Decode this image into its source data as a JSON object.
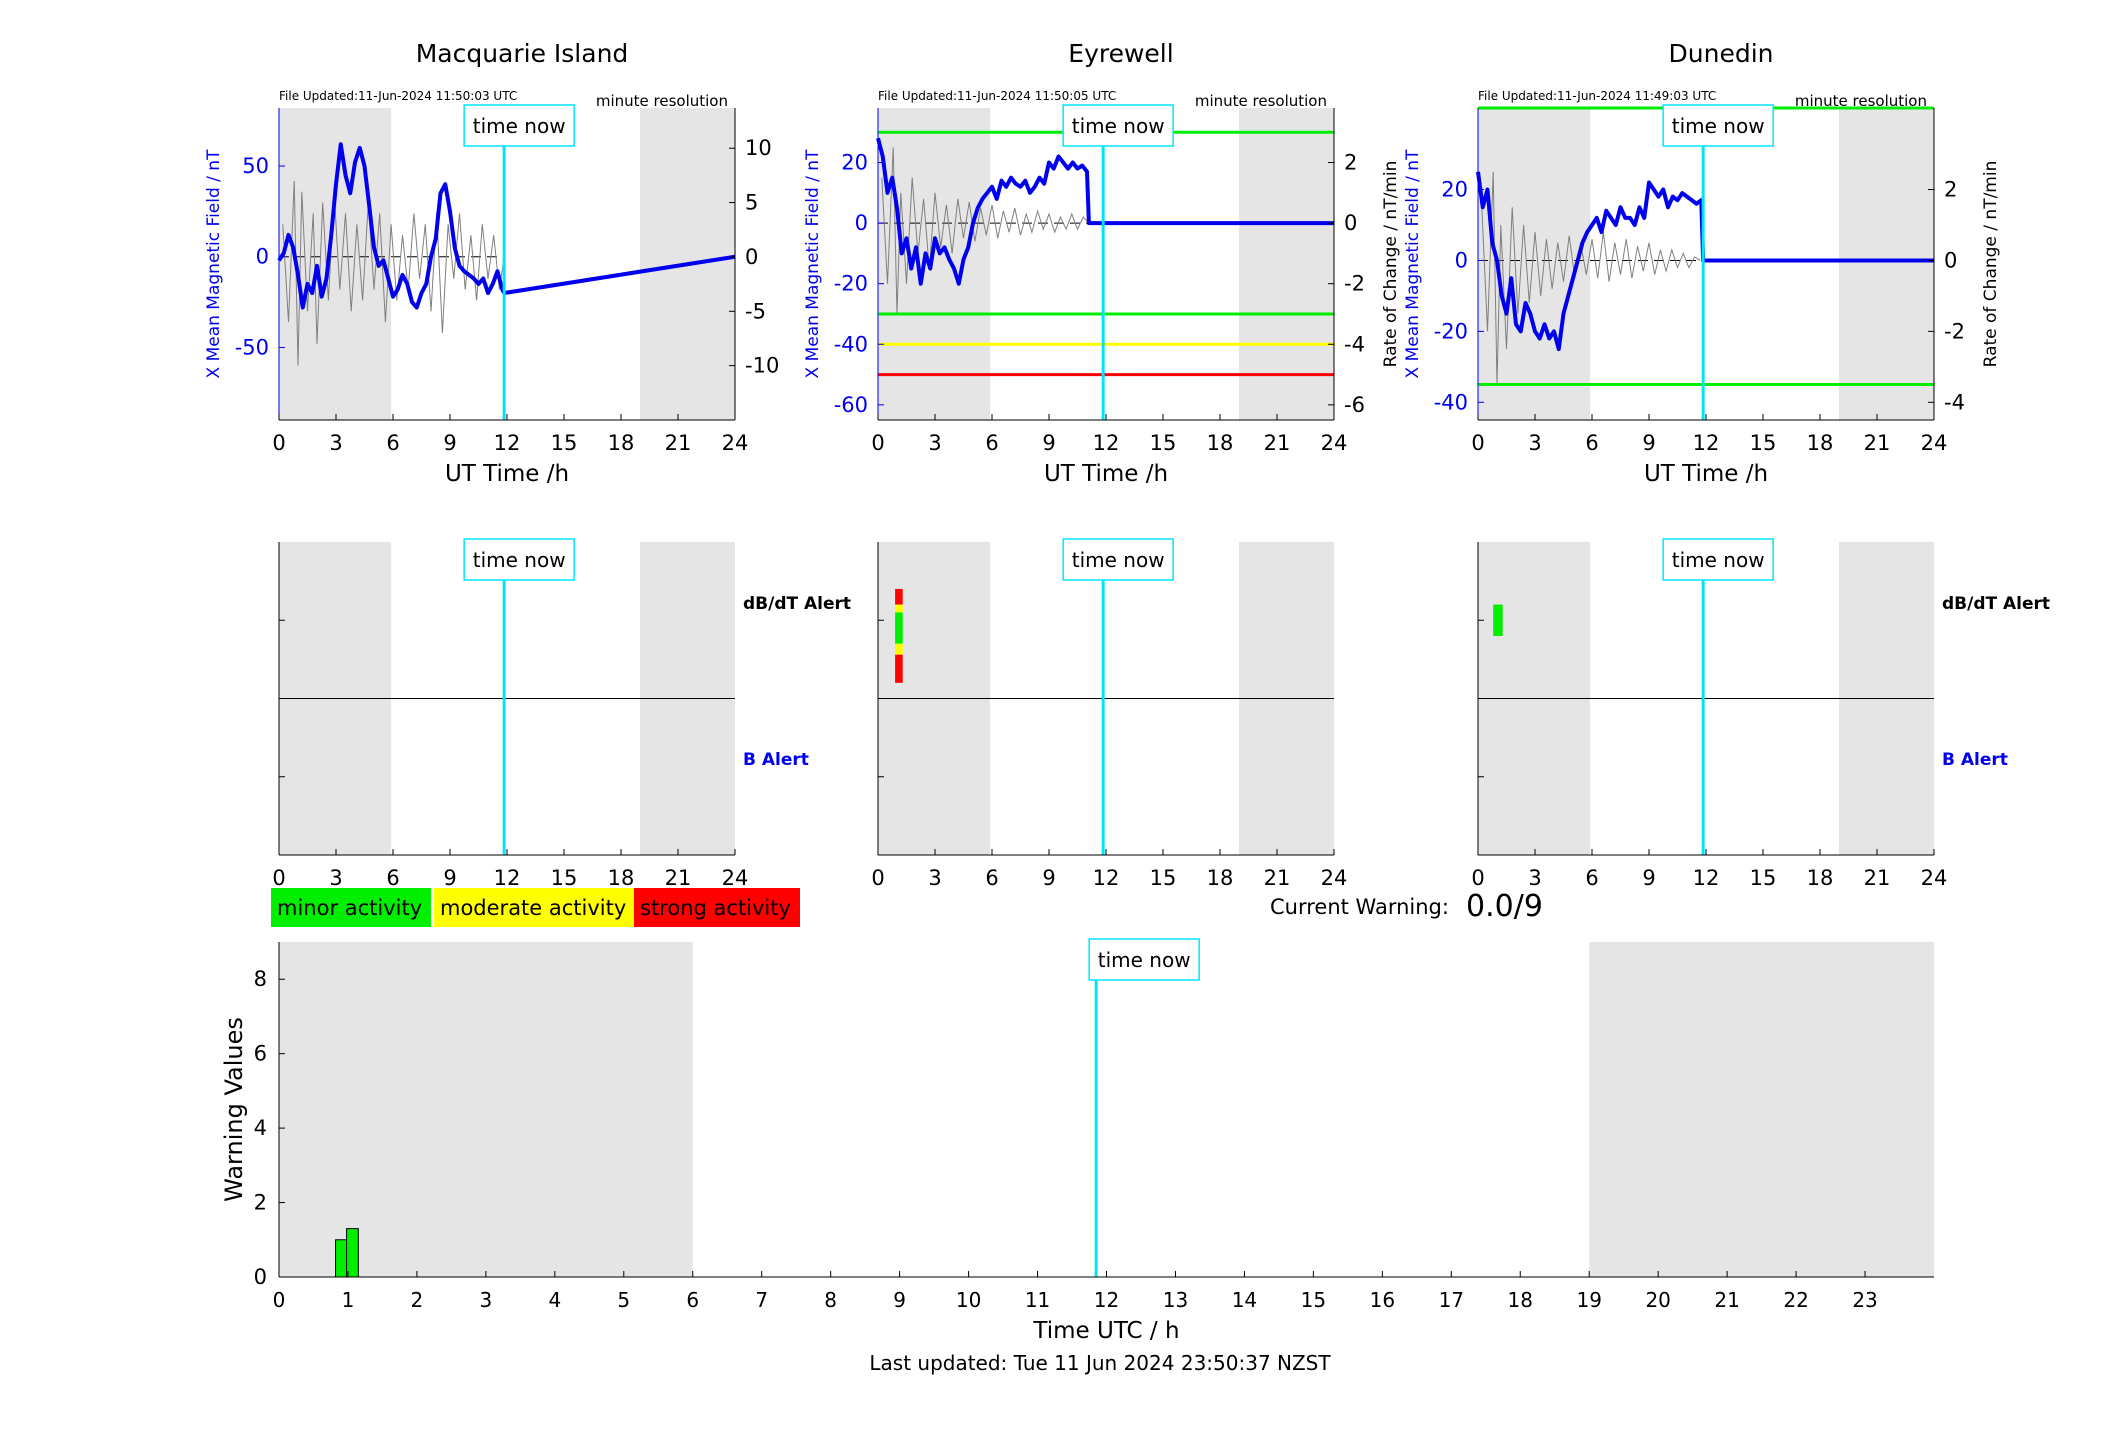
{
  "page": {
    "footer": "Last updated: Tue 11 Jun 2024 23:50:37 NZST",
    "current_warning_label": "Current Warning:",
    "current_warning_value": "0.0/9",
    "time_now_label": "time now",
    "resolution_label": "minute resolution",
    "dbdt_alert_label": "dB/dT Alert",
    "b_alert_label": "B Alert",
    "colors": {
      "field": "#0000ee",
      "rate": "#808080",
      "time_now": "#00e5ff",
      "shade": "#e5e5e5",
      "minor": "#00ee00",
      "moderate": "#ffff00",
      "strong": "#ff0000"
    }
  },
  "legend": [
    {
      "label": "minor activity",
      "color": "#00ee00"
    },
    {
      "label": "moderate activity",
      "color": "#ffff00"
    },
    {
      "label": "strong activity",
      "color": "#ff0000"
    }
  ],
  "chart_data": [
    {
      "type": "line",
      "station": "Macquarie Island",
      "title": "Macquarie Island",
      "file_updated": "File Updated:11-Jun-2024 11:50:03 UTC",
      "xlabel": "UT Time /h",
      "ylabel_left": "X Mean Magnetic Field / nT",
      "ylabel_right": "",
      "xlim": [
        0,
        24
      ],
      "xticks": [
        0,
        3,
        6,
        9,
        12,
        15,
        18,
        21,
        24
      ],
      "ylim": [
        -90,
        82
      ],
      "yticks": [
        -50,
        0,
        50
      ],
      "ylim_right": [
        -15,
        13.7
      ],
      "yticks_right": [
        -10,
        -5,
        0,
        5,
        10
      ],
      "shaded": [
        [
          0,
          5.9
        ],
        [
          19,
          24
        ]
      ],
      "time_now": 11.85,
      "thresholds": [],
      "field": {
        "x": [
          0,
          0.25,
          0.5,
          0.75,
          1,
          1.25,
          1.5,
          1.75,
          2,
          2.25,
          2.5,
          2.75,
          3,
          3.25,
          3.5,
          3.75,
          4,
          4.25,
          4.5,
          4.75,
          5,
          5.25,
          5.5,
          5.75,
          6,
          6.25,
          6.5,
          6.75,
          7,
          7.25,
          7.5,
          7.75,
          8,
          8.25,
          8.5,
          8.75,
          9,
          9.25,
          9.5,
          9.75,
          10,
          10.25,
          10.5,
          10.75,
          11,
          11.25,
          11.5,
          11.75,
          11.85,
          24
        ],
        "y": [
          -2,
          2,
          12,
          5,
          -10,
          -28,
          -15,
          -20,
          -5,
          -22,
          -12,
          12,
          40,
          62,
          45,
          35,
          52,
          60,
          50,
          28,
          5,
          -5,
          -2,
          -12,
          -22,
          -18,
          -10,
          -15,
          -25,
          -28,
          -20,
          -15,
          0,
          10,
          35,
          40,
          25,
          5,
          -5,
          -8,
          -10,
          -12,
          -15,
          -12,
          -20,
          -15,
          -8,
          -18,
          -20,
          0
        ]
      },
      "rate": {
        "x": [
          0.2,
          0.5,
          0.8,
          1.0,
          1.2,
          1.5,
          1.8,
          2.0,
          2.3,
          2.6,
          2.9,
          3.2,
          3.5,
          3.8,
          4.1,
          4.4,
          4.7,
          5.0,
          5.3,
          5.6,
          5.9,
          6.2,
          6.5,
          6.8,
          7.1,
          7.4,
          7.7,
          8.0,
          8.3,
          8.6,
          8.9,
          9.2,
          9.5,
          9.8,
          10.1,
          10.4,
          10.7,
          11.0,
          11.3,
          11.6,
          11.85
        ],
        "y": [
          3,
          -6,
          7,
          -10,
          6,
          -5,
          4,
          -8,
          5,
          -4,
          6,
          -3,
          4,
          -5,
          3,
          -4,
          5,
          -3,
          4,
          -6,
          3,
          -4,
          2,
          -3,
          4,
          -2,
          3,
          -5,
          4,
          -7,
          3,
          -2,
          4,
          -3,
          2,
          -4,
          3,
          -2,
          2,
          -3,
          0
        ]
      }
    },
    {
      "type": "line",
      "station": "Eyrewell",
      "title": "Eyrewell",
      "file_updated": "File Updated:11-Jun-2024 11:50:05 UTC",
      "xlabel": "UT Time /h",
      "ylabel_left": "X Mean Magnetic Field / nT",
      "ylabel_right": "Rate of Change / nT/min",
      "xlim": [
        0,
        24
      ],
      "xticks": [
        0,
        3,
        6,
        9,
        12,
        15,
        18,
        21,
        24
      ],
      "ylim": [
        -65,
        38
      ],
      "yticks": [
        -60,
        -40,
        -20,
        0,
        20
      ],
      "ylim_right": [
        -6.5,
        3.8
      ],
      "yticks_right": [
        -6,
        -4,
        -2,
        0,
        2
      ],
      "shaded": [
        [
          0,
          5.9
        ],
        [
          19,
          24
        ]
      ],
      "time_now": 11.85,
      "thresholds": [
        {
          "y": 30,
          "color": "#00ee00"
        },
        {
          "y": -30,
          "color": "#00ee00"
        },
        {
          "y": -40,
          "color": "#ffff00"
        },
        {
          "y": -50,
          "color": "#ff0000"
        }
      ],
      "field": {
        "x": [
          0,
          0.25,
          0.5,
          0.75,
          1,
          1.25,
          1.5,
          1.75,
          2,
          2.25,
          2.5,
          2.75,
          3,
          3.25,
          3.5,
          3.75,
          4,
          4.25,
          4.5,
          4.75,
          5,
          5.25,
          5.5,
          5.75,
          6,
          6.25,
          6.5,
          6.75,
          7,
          7.25,
          7.5,
          7.75,
          8,
          8.25,
          8.5,
          8.75,
          9,
          9.25,
          9.5,
          9.75,
          10,
          10.25,
          10.5,
          10.75,
          11,
          11.1,
          11.85,
          24
        ],
        "y": [
          28,
          22,
          10,
          15,
          5,
          -10,
          -5,
          -15,
          -8,
          -20,
          -10,
          -15,
          -5,
          -10,
          -8,
          -12,
          -15,
          -20,
          -12,
          -8,
          0,
          5,
          8,
          10,
          12,
          8,
          14,
          12,
          15,
          13,
          12,
          14,
          10,
          12,
          15,
          13,
          20,
          18,
          22,
          20,
          18,
          20,
          18,
          19,
          17,
          0,
          0,
          0
        ]
      },
      "rate": {
        "x": [
          0.2,
          0.5,
          0.8,
          1.0,
          1.2,
          1.5,
          1.8,
          2.1,
          2.4,
          2.7,
          3.0,
          3.3,
          3.6,
          3.9,
          4.2,
          4.5,
          4.8,
          5.1,
          5.4,
          5.7,
          6.0,
          6.3,
          6.6,
          6.9,
          7.2,
          7.5,
          7.8,
          8.1,
          8.4,
          8.7,
          9.0,
          9.3,
          9.6,
          9.9,
          10.2,
          10.5,
          10.8,
          11.1
        ],
        "y": [
          1.5,
          -2,
          2.5,
          -3,
          1,
          -2,
          1.5,
          -1,
          0.8,
          -1.5,
          1,
          -0.8,
          0.6,
          -1,
          0.8,
          -0.5,
          0.7,
          -0.6,
          0.5,
          -0.4,
          0.6,
          -0.5,
          0.4,
          -0.3,
          0.5,
          -0.4,
          0.3,
          -0.3,
          0.4,
          -0.2,
          0.3,
          -0.3,
          0.2,
          -0.2,
          0.3,
          -0.2,
          0.2,
          0
        ]
      }
    },
    {
      "type": "line",
      "station": "Dunedin",
      "title": "Dunedin",
      "file_updated": "File Updated:11-Jun-2024 11:49:03 UTC",
      "xlabel": "UT Time /h",
      "ylabel_left": "X Mean Magnetic Field / nT",
      "ylabel_right": "Rate of Change / nT/min",
      "xlim": [
        0,
        24
      ],
      "xticks": [
        0,
        3,
        6,
        9,
        12,
        15,
        18,
        21,
        24
      ],
      "ylim": [
        -45,
        43
      ],
      "yticks": [
        -40,
        -20,
        0,
        20
      ],
      "ylim_right": [
        -4.5,
        4.3
      ],
      "yticks_right": [
        -4,
        -2,
        0,
        2
      ],
      "shaded": [
        [
          0,
          5.9
        ],
        [
          19,
          24
        ]
      ],
      "time_now": 11.85,
      "thresholds": [
        {
          "y": 43,
          "color": "#00ee00"
        },
        {
          "y": -35,
          "color": "#00ee00"
        }
      ],
      "field": {
        "x": [
          0,
          0.25,
          0.5,
          0.75,
          1,
          1.25,
          1.5,
          1.75,
          2,
          2.25,
          2.5,
          2.75,
          3,
          3.25,
          3.5,
          3.75,
          4,
          4.25,
          4.5,
          4.75,
          5,
          5.25,
          5.5,
          5.75,
          6,
          6.25,
          6.5,
          6.75,
          7,
          7.25,
          7.5,
          7.75,
          8,
          8.25,
          8.5,
          8.75,
          9,
          9.25,
          9.5,
          9.75,
          10,
          10.25,
          10.5,
          10.75,
          11,
          11.5,
          11.75,
          11.85,
          24
        ],
        "y": [
          25,
          15,
          20,
          5,
          0,
          -10,
          -15,
          -5,
          -18,
          -20,
          -12,
          -15,
          -20,
          -22,
          -18,
          -22,
          -20,
          -25,
          -15,
          -10,
          -5,
          0,
          5,
          8,
          10,
          12,
          8,
          14,
          12,
          10,
          15,
          12,
          12,
          10,
          15,
          12,
          22,
          20,
          18,
          20,
          15,
          18,
          17,
          19,
          18,
          16,
          17,
          0,
          0
        ]
      },
      "rate": {
        "x": [
          0.2,
          0.5,
          0.8,
          1.0,
          1.2,
          1.5,
          1.8,
          2.1,
          2.4,
          2.7,
          3.0,
          3.3,
          3.6,
          3.9,
          4.2,
          4.5,
          4.8,
          5.1,
          5.4,
          5.7,
          6.0,
          6.3,
          6.6,
          6.9,
          7.2,
          7.5,
          7.8,
          8.1,
          8.4,
          8.7,
          9.0,
          9.3,
          9.6,
          9.9,
          10.2,
          10.5,
          10.8,
          11.1,
          11.4,
          11.7
        ],
        "y": [
          1.5,
          -2,
          2.5,
          -3.5,
          1,
          -2.5,
          1.5,
          -1.5,
          1,
          -1.2,
          0.8,
          -1,
          0.6,
          -0.8,
          0.5,
          -0.6,
          0.7,
          -0.5,
          0.5,
          -0.4,
          0.6,
          -0.5,
          0.8,
          -0.6,
          0.5,
          -0.4,
          0.6,
          -0.5,
          0.4,
          -0.3,
          0.5,
          -0.4,
          0.3,
          -0.3,
          0.3,
          -0.2,
          0.2,
          -0.2,
          0.1,
          0
        ]
      }
    },
    {
      "type": "heatmap",
      "station": "Macquarie Island",
      "panel": "alerts",
      "xlim": [
        0,
        24
      ],
      "xticks": [
        0,
        3,
        6,
        9,
        12,
        15,
        18,
        21,
        24
      ],
      "shaded": [
        [
          0,
          5.9
        ],
        [
          19,
          24
        ]
      ],
      "time_now": 11.85,
      "dbdt_alerts": [],
      "b_alerts": []
    },
    {
      "type": "heatmap",
      "station": "Eyrewell",
      "panel": "alerts",
      "xlim": [
        0,
        24
      ],
      "xticks": [
        0,
        3,
        6,
        9,
        12,
        15,
        18,
        21,
        24
      ],
      "shaded": [
        [
          0,
          5.9
        ],
        [
          19,
          24
        ]
      ],
      "time_now": 11.85,
      "dbdt_alerts": [
        {
          "x0": 0.9,
          "x1": 1.3,
          "y0": 0.3,
          "y1": 0.4,
          "level": "strong"
        },
        {
          "x0": 0.9,
          "x1": 1.3,
          "y0": 0.4,
          "y1": 0.45,
          "level": "moderate"
        },
        {
          "x0": 0.9,
          "x1": 1.3,
          "y0": 0.45,
          "y1": 0.65,
          "level": "minor"
        },
        {
          "x0": 0.9,
          "x1": 1.3,
          "y0": 0.65,
          "y1": 0.72,
          "level": "moderate"
        },
        {
          "x0": 0.9,
          "x1": 1.3,
          "y0": 0.72,
          "y1": 0.9,
          "level": "strong"
        }
      ],
      "b_alerts": []
    },
    {
      "type": "heatmap",
      "station": "Dunedin",
      "panel": "alerts",
      "xlim": [
        0,
        24
      ],
      "xticks": [
        0,
        3,
        6,
        9,
        12,
        15,
        18,
        21,
        24
      ],
      "shaded": [
        [
          0,
          5.9
        ],
        [
          19,
          24
        ]
      ],
      "time_now": 11.85,
      "dbdt_alerts": [
        {
          "x0": 0.8,
          "x1": 1.3,
          "y0": 0.4,
          "y1": 0.6,
          "level": "minor"
        }
      ],
      "b_alerts": []
    },
    {
      "type": "bar",
      "panel": "warning",
      "xlabel": "Time UTC / h",
      "ylabel": "Warning Values",
      "xlim": [
        0,
        24
      ],
      "xticks": [
        0,
        1,
        2,
        3,
        4,
        5,
        6,
        7,
        8,
        9,
        10,
        11,
        12,
        13,
        14,
        15,
        16,
        17,
        18,
        19,
        20,
        21,
        22,
        23
      ],
      "ylim": [
        0,
        9
      ],
      "yticks": [
        0,
        2,
        4,
        6,
        8
      ],
      "shaded": [
        [
          0,
          6
        ],
        [
          19,
          24
        ]
      ],
      "time_now": 11.85,
      "bars": [
        {
          "x0": 0.82,
          "x1": 0.98,
          "value": 1.0,
          "color": "#00ee00"
        },
        {
          "x0": 0.98,
          "x1": 1.15,
          "value": 1.3,
          "color": "#00ee00"
        }
      ]
    }
  ]
}
